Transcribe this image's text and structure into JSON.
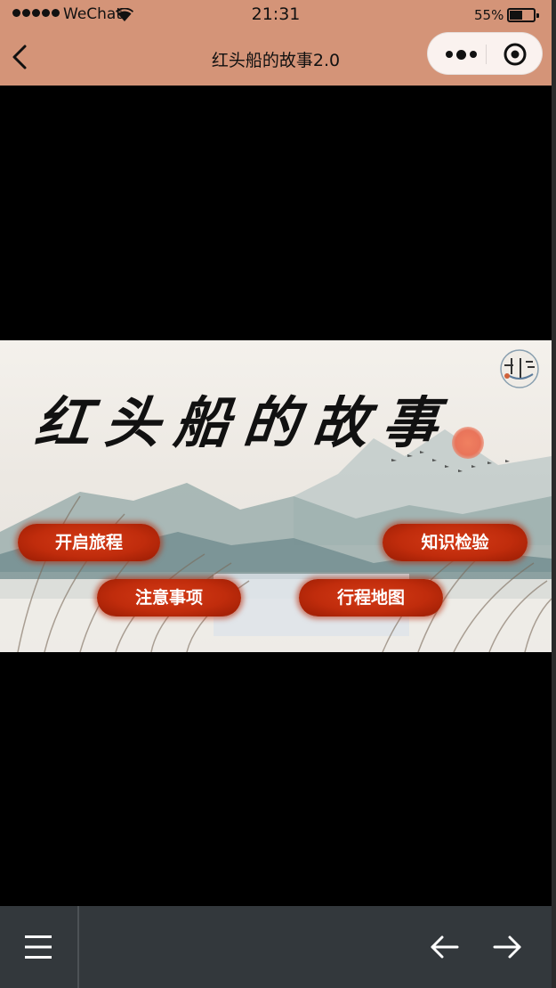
{
  "status_bar": {
    "carrier": "WeChat",
    "time": "21:31",
    "battery_percent": "55%",
    "battery_level": 0.55,
    "signal_dots": 5
  },
  "nav": {
    "title": "红头船的故事2.0",
    "back_icon": "chevron-left-icon",
    "more_icon": "more-dots-icon",
    "close_icon": "target-circle-icon"
  },
  "game": {
    "title": "红头船的故事",
    "buttons": {
      "start": "开启旅程",
      "quiz": "知识检验",
      "notes": "注意事项",
      "map": "行程地图"
    },
    "button_color": "#c02c0c",
    "seal_icon": "seal-logo-icon"
  },
  "bottom_bar": {
    "menu_icon": "hamburger-menu-icon",
    "prev_icon": "arrow-left-icon",
    "next_icon": "arrow-right-icon"
  },
  "colors": {
    "header": "#d49478",
    "bottom_bar": "#33383c",
    "background": "#000000"
  }
}
